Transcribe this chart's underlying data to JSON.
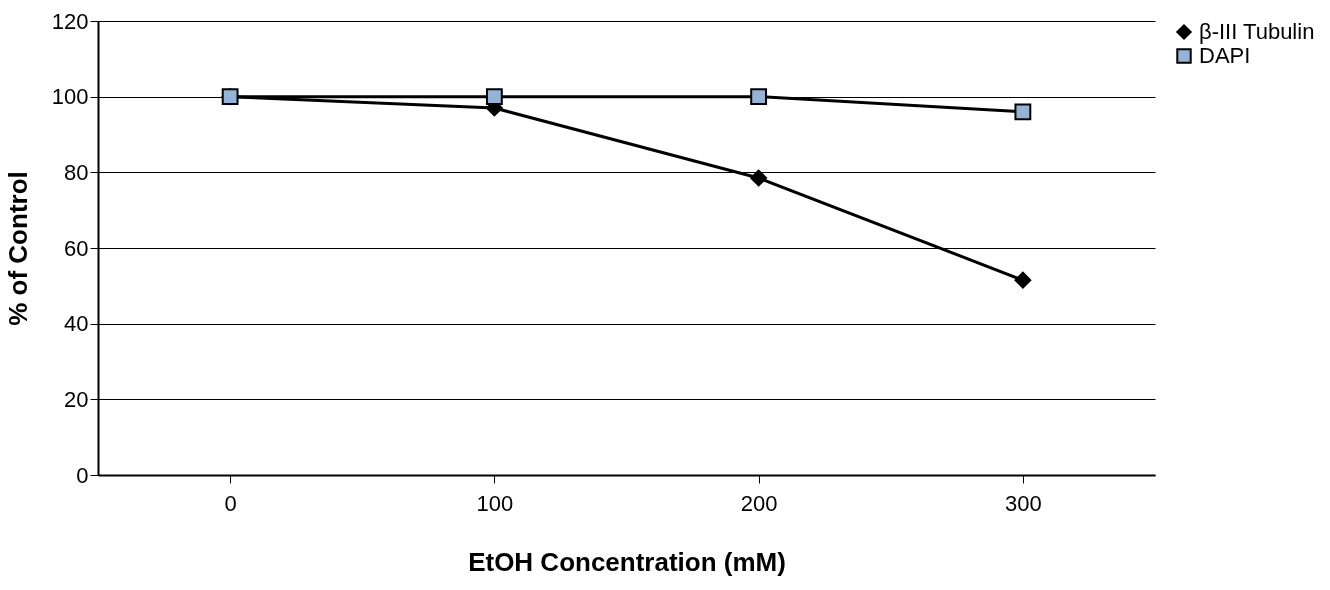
{
  "chart_data": {
    "type": "line",
    "xlabel": "EtOH Concentration (mM)",
    "ylabel": "% of Control",
    "categories": [
      "0",
      "100",
      "200",
      "300"
    ],
    "series": [
      {
        "name": "β-III Tubulin",
        "color": "#000000",
        "marker": "diamond",
        "values": [
          100,
          97,
          78.5,
          51.5
        ]
      },
      {
        "name": "DAPI",
        "color": "#95b3d7",
        "marker": "square",
        "values": [
          100,
          100,
          100,
          96
        ]
      }
    ],
    "ylim": [
      0,
      120
    ],
    "yticks": [
      0,
      20,
      40,
      60,
      80,
      100,
      120
    ],
    "grid": "y",
    "legend": "right",
    "line_style": "solid"
  }
}
